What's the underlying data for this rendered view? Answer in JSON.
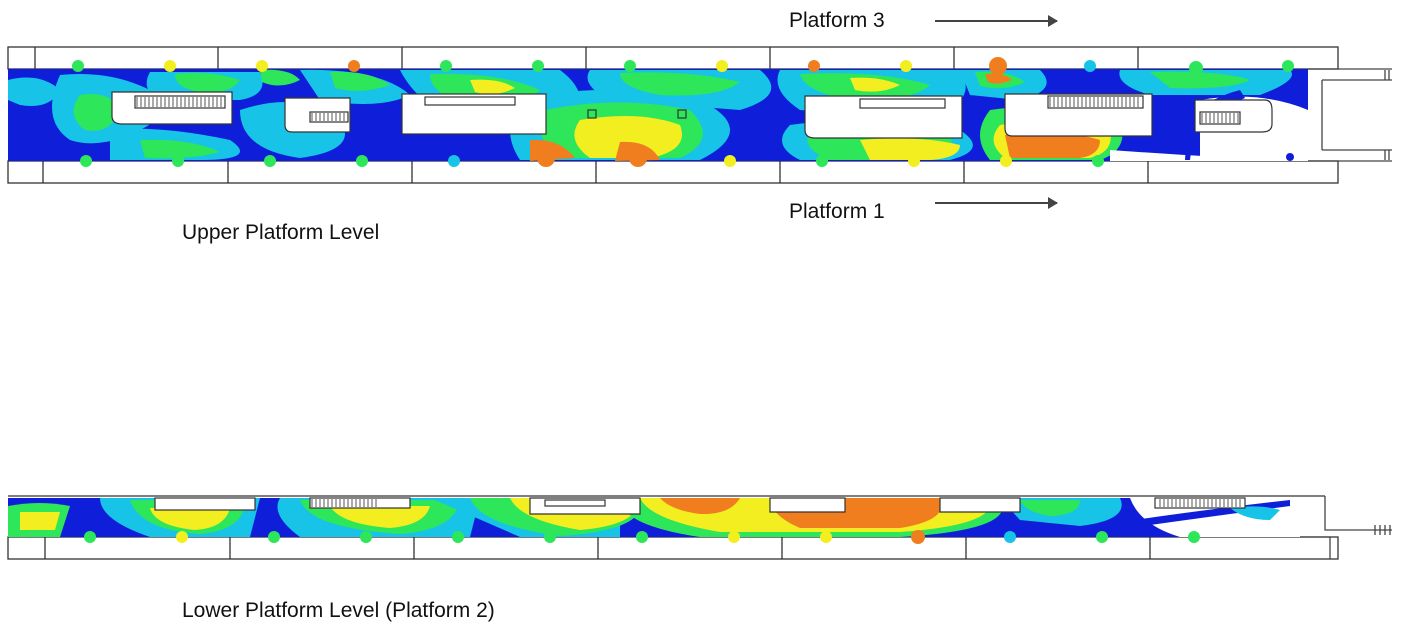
{
  "labels": {
    "platform_3": "Platform 3",
    "platform_1": "Platform 1",
    "upper_level": "Upper Platform Level",
    "lower_level": "Lower Platform Level (Platform 2)"
  },
  "legend_colors": {
    "very_low": "#0f1fd9",
    "low": "#17c4e8",
    "medium": "#2ee65a",
    "high": "#f2ee1f",
    "very_high": "#f07d1e"
  }
}
